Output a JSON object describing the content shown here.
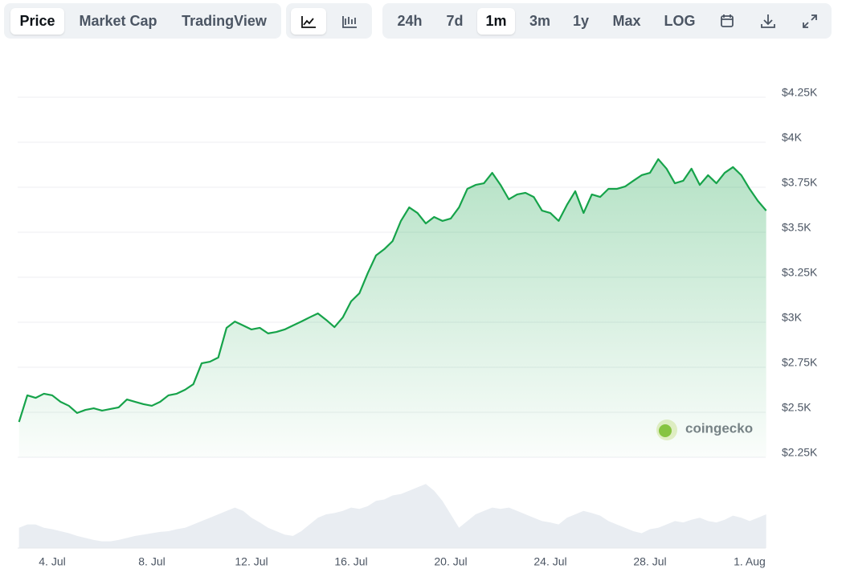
{
  "toolbar": {
    "views": [
      "Price",
      "Market Cap",
      "TradingView"
    ],
    "ranges": [
      "24h",
      "7d",
      "1m",
      "3m",
      "1y",
      "Max",
      "LOG"
    ]
  },
  "chart_data": {
    "type": "line",
    "watermark": "coingecko",
    "categories": [
      null,
      null,
      null,
      null,
      "4. Jul",
      null,
      null,
      null,
      null,
      null,
      null,
      null,
      null,
      null,
      null,
      null,
      "8. Jul",
      null,
      null,
      null,
      null,
      null,
      null,
      null,
      null,
      null,
      null,
      null,
      "12. Jul",
      null,
      null,
      null,
      null,
      null,
      null,
      null,
      null,
      null,
      null,
      null,
      "16. Jul",
      null,
      null,
      null,
      null,
      null,
      null,
      null,
      null,
      null,
      null,
      null,
      "20. Jul",
      null,
      null,
      null,
      null,
      null,
      null,
      null,
      null,
      null,
      null,
      null,
      "24. Jul",
      null,
      null,
      null,
      null,
      null,
      null,
      null,
      null,
      null,
      null,
      null,
      "28. Jul",
      null,
      null,
      null,
      null,
      null,
      null,
      null,
      null,
      null,
      null,
      null,
      "1. Aug",
      null,
      null
    ],
    "series": [
      {
        "name": "Price",
        "color": "#16a34a",
        "values": [
          2446,
          2594,
          2580,
          2603,
          2594,
          2558,
          2536,
          2496,
          2513,
          2522,
          2509,
          2518,
          2527,
          2571,
          2558,
          2545,
          2536,
          2558,
          2594,
          2603,
          2625,
          2656,
          2772,
          2781,
          2804,
          2969,
          3004,
          2982,
          2960,
          2969,
          2938,
          2946,
          2960,
          2982,
          3004,
          3027,
          3049,
          3013,
          2973,
          3027,
          3116,
          3161,
          3272,
          3371,
          3406,
          3451,
          3563,
          3638,
          3607,
          3549,
          3585,
          3563,
          3576,
          3638,
          3741,
          3763,
          3772,
          3830,
          3763,
          3683,
          3710,
          3719,
          3696,
          3620,
          3607,
          3563,
          3652,
          3728,
          3607,
          3710,
          3696,
          3741,
          3741,
          3754,
          3786,
          3817,
          3830,
          3906,
          3853,
          3772,
          3786,
          3853,
          3763,
          3817,
          3772,
          3830,
          3862,
          3817,
          3741,
          3674,
          3620
        ]
      },
      {
        "name": "Volume",
        "color": "#e9edf2",
        "axis": "y2",
        "values": [
          30,
          35,
          35,
          30,
          28,
          25,
          22,
          18,
          15,
          12,
          10,
          10,
          12,
          15,
          18,
          20,
          22,
          24,
          25,
          28,
          30,
          35,
          40,
          45,
          50,
          55,
          60,
          55,
          45,
          38,
          30,
          25,
          20,
          18,
          25,
          35,
          45,
          50,
          52,
          55,
          60,
          58,
          62,
          70,
          72,
          78,
          80,
          85,
          90,
          95,
          85,
          70,
          50,
          30,
          40,
          50,
          55,
          60,
          58,
          60,
          55,
          50,
          45,
          40,
          38,
          35,
          45,
          50,
          55,
          52,
          48,
          40,
          35,
          30,
          25,
          22,
          28,
          30,
          35,
          40,
          38,
          42,
          45,
          40,
          38,
          42,
          48,
          45,
          40,
          45,
          50
        ]
      }
    ],
    "ylim": [
      2250,
      4250
    ],
    "yticks": [
      {
        "value": 2250,
        "label": "$2.25K"
      },
      {
        "value": 2500,
        "label": "$2.5K"
      },
      {
        "value": 2750,
        "label": "$2.75K"
      },
      {
        "value": 3000,
        "label": "$3K"
      },
      {
        "value": 3250,
        "label": "$3.25K"
      },
      {
        "value": 3500,
        "label": "$3.5K"
      },
      {
        "value": 3750,
        "label": "$3.75K"
      },
      {
        "value": 4000,
        "label": "$4K"
      },
      {
        "value": 4250,
        "label": "$4.25K"
      }
    ],
    "y2lim": [
      0,
      100
    ],
    "grid": true
  }
}
